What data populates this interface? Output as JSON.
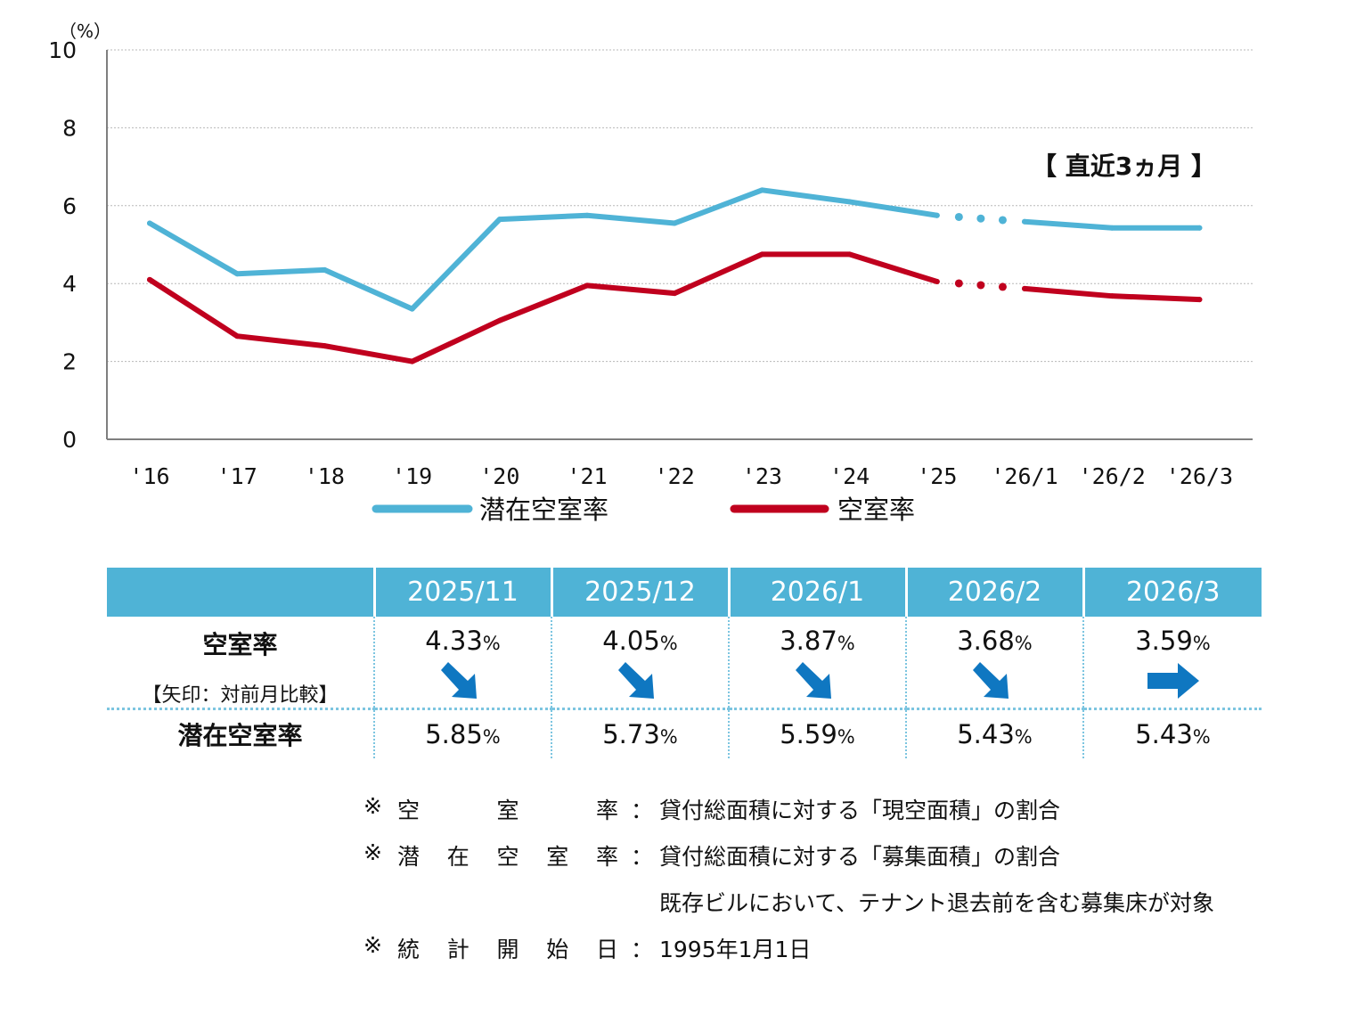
{
  "chart_data": {
    "type": "line",
    "unit": "（%）",
    "ylim": [
      0,
      10
    ],
    "y_ticks": [
      "0",
      "2",
      "4",
      "6",
      "8",
      "10"
    ],
    "categories": [
      "'16",
      "'17",
      "'18",
      "'19",
      "'20",
      "'21",
      "'22",
      "'23",
      "'24",
      "'25",
      "'26/1",
      "'26/2",
      "'26/3"
    ],
    "series": [
      {
        "name": "潜在空室率",
        "color": "#4fb3d6",
        "values": [
          5.55,
          4.25,
          4.35,
          3.35,
          5.65,
          5.75,
          5.55,
          6.4,
          6.1,
          5.75,
          5.59,
          5.43,
          5.43
        ]
      },
      {
        "name": "空室率",
        "color": "#c0001e",
        "values": [
          4.1,
          2.65,
          2.4,
          2.0,
          3.05,
          3.95,
          3.75,
          4.75,
          4.75,
          4.05,
          3.87,
          3.68,
          3.59
        ]
      }
    ],
    "annotation": "【 直近3ヵ月 】",
    "grid": "horizontal dotted",
    "legend_position": "bottom"
  },
  "table": {
    "headers": [
      "2025/11",
      "2025/12",
      "2026/1",
      "2026/2",
      "2026/3"
    ],
    "vacancy_label": "空室率",
    "arrow_note": "【矢印：対前月比較】",
    "vacancy_values": [
      "4.33",
      "4.05",
      "3.87",
      "3.68",
      "3.59"
    ],
    "vacancy_arrows": [
      "down-right",
      "down-right",
      "down-right",
      "down-right",
      "right"
    ],
    "potential_label": "潜在空室率",
    "potential_values": [
      "5.85",
      "5.73",
      "5.59",
      "5.43",
      "5.43"
    ],
    "percent_sign": "%",
    "arrow_color": "#0f77c1"
  },
  "notes": [
    {
      "mark": "※",
      "label": "空室率",
      "colon": "：",
      "desc": "貸付総面積に対する「現空面積」の割合"
    },
    {
      "mark": "※",
      "label": "潜在空室率",
      "colon": "：",
      "desc": "貸付総面積に対する「募集面積」の割合"
    },
    {
      "mark": "",
      "label": "",
      "colon": "",
      "desc": "既存ビルにおいて、テナント退去前を含む募集床が対象"
    },
    {
      "mark": "※",
      "label": "統計開始日",
      "colon": "：",
      "desc": "1995年1月1日"
    }
  ]
}
